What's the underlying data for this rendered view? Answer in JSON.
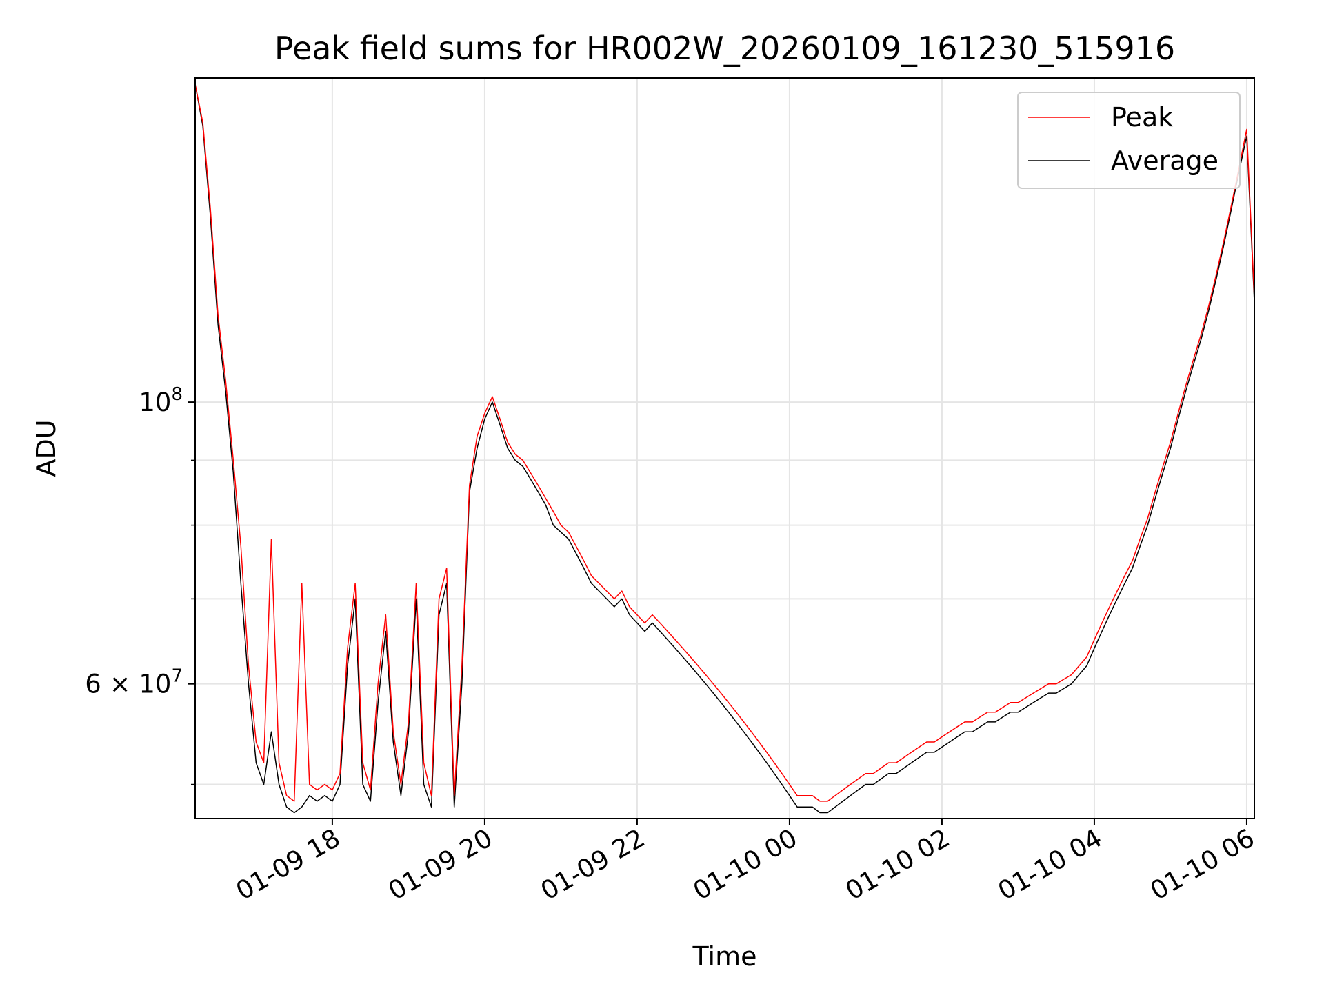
{
  "chart_data": {
    "type": "line",
    "title": "Peak field sums for HR002W_20260109_161230_515916",
    "xlabel": "Time",
    "ylabel": "ADU",
    "yscale": "log",
    "grid": true,
    "legend_position": "top-right",
    "xlim_hours": [
      16.2,
      30.1
    ],
    "ylim": [
      47000000,
      180000000
    ],
    "x_ticks": [
      {
        "hour": 18,
        "label": "01-09 18"
      },
      {
        "hour": 20,
        "label": "01-09 20"
      },
      {
        "hour": 22,
        "label": "01-09 22"
      },
      {
        "hour": 24,
        "label": "01-10 00"
      },
      {
        "hour": 26,
        "label": "01-10 02"
      },
      {
        "hour": 28,
        "label": "01-10 04"
      },
      {
        "hour": 30,
        "label": "01-10 06"
      }
    ],
    "y_major_ticks": [
      {
        "value": 100000000,
        "label_base": "10",
        "label_exp": "8"
      },
      {
        "value": 60000000,
        "label_base": "6 × 10",
        "label_exp": "7"
      }
    ],
    "y_minor_ticks": [
      50000000,
      70000000,
      80000000,
      90000000
    ],
    "series": [
      {
        "name": "Average",
        "color": "#000000",
        "points": [
          [
            16.2,
            178000000
          ],
          [
            16.3,
            165000000
          ],
          [
            16.4,
            140000000
          ],
          [
            16.5,
            115000000
          ],
          [
            16.6,
            102000000
          ],
          [
            16.7,
            88000000
          ],
          [
            16.8,
            72000000
          ],
          [
            16.9,
            60000000
          ],
          [
            17.0,
            52000000
          ],
          [
            17.1,
            50000000
          ],
          [
            17.2,
            55000000
          ],
          [
            17.3,
            50000000
          ],
          [
            17.4,
            48000000
          ],
          [
            17.5,
            47500000
          ],
          [
            17.6,
            48000000
          ],
          [
            17.7,
            49000000
          ],
          [
            17.8,
            48500000
          ],
          [
            17.9,
            49000000
          ],
          [
            18.0,
            48500000
          ],
          [
            18.1,
            50000000
          ],
          [
            18.2,
            62000000
          ],
          [
            18.3,
            70000000
          ],
          [
            18.4,
            50000000
          ],
          [
            18.5,
            48500000
          ],
          [
            18.6,
            58000000
          ],
          [
            18.7,
            66000000
          ],
          [
            18.8,
            54000000
          ],
          [
            18.9,
            49000000
          ],
          [
            19.0,
            55000000
          ],
          [
            19.1,
            70000000
          ],
          [
            19.2,
            50000000
          ],
          [
            19.3,
            48000000
          ],
          [
            19.4,
            68000000
          ],
          [
            19.5,
            72000000
          ],
          [
            19.6,
            48000000
          ],
          [
            19.7,
            60000000
          ],
          [
            19.8,
            85000000
          ],
          [
            19.9,
            92000000
          ],
          [
            20.0,
            97000000
          ],
          [
            20.1,
            100000000
          ],
          [
            20.2,
            96000000
          ],
          [
            20.3,
            92000000
          ],
          [
            20.4,
            90000000
          ],
          [
            20.5,
            89000000
          ],
          [
            20.6,
            87000000
          ],
          [
            20.7,
            85000000
          ],
          [
            20.8,
            83000000
          ],
          [
            20.9,
            80000000
          ],
          [
            21.0,
            79000000
          ],
          [
            21.1,
            78000000
          ],
          [
            21.2,
            76000000
          ],
          [
            21.3,
            74000000
          ],
          [
            21.4,
            72000000
          ],
          [
            21.5,
            71000000
          ],
          [
            21.6,
            70000000
          ],
          [
            21.7,
            69000000
          ],
          [
            21.8,
            70000000
          ],
          [
            21.9,
            68000000
          ],
          [
            22.0,
            67000000
          ],
          [
            22.1,
            66000000
          ],
          [
            22.2,
            67000000
          ],
          [
            22.3,
            66000000
          ],
          [
            22.4,
            65000000
          ],
          [
            22.5,
            64000000
          ],
          [
            22.6,
            63000000
          ],
          [
            22.7,
            62000000
          ],
          [
            22.8,
            61000000
          ],
          [
            22.9,
            60000000
          ],
          [
            23.0,
            59000000
          ],
          [
            23.1,
            58000000
          ],
          [
            23.2,
            57000000
          ],
          [
            23.3,
            56000000
          ],
          [
            23.4,
            55000000
          ],
          [
            23.5,
            54000000
          ],
          [
            23.6,
            53000000
          ],
          [
            23.7,
            52000000
          ],
          [
            23.8,
            51000000
          ],
          [
            23.9,
            50000000
          ],
          [
            24.0,
            49000000
          ],
          [
            24.1,
            48000000
          ],
          [
            24.2,
            48000000
          ],
          [
            24.3,
            48000000
          ],
          [
            24.4,
            47500000
          ],
          [
            24.5,
            47500000
          ],
          [
            24.6,
            48000000
          ],
          [
            24.7,
            48500000
          ],
          [
            24.8,
            49000000
          ],
          [
            24.9,
            49500000
          ],
          [
            25.0,
            50000000
          ],
          [
            25.1,
            50000000
          ],
          [
            25.2,
            50500000
          ],
          [
            25.3,
            51000000
          ],
          [
            25.4,
            51000000
          ],
          [
            25.5,
            51500000
          ],
          [
            25.6,
            52000000
          ],
          [
            25.7,
            52500000
          ],
          [
            25.8,
            53000000
          ],
          [
            25.9,
            53000000
          ],
          [
            26.0,
            53500000
          ],
          [
            26.1,
            54000000
          ],
          [
            26.2,
            54500000
          ],
          [
            26.3,
            55000000
          ],
          [
            26.4,
            55000000
          ],
          [
            26.5,
            55500000
          ],
          [
            26.6,
            56000000
          ],
          [
            26.7,
            56000000
          ],
          [
            26.8,
            56500000
          ],
          [
            26.9,
            57000000
          ],
          [
            27.0,
            57000000
          ],
          [
            27.1,
            57500000
          ],
          [
            27.2,
            58000000
          ],
          [
            27.3,
            58500000
          ],
          [
            27.4,
            59000000
          ],
          [
            27.5,
            59000000
          ],
          [
            27.6,
            59500000
          ],
          [
            27.7,
            60000000
          ],
          [
            27.8,
            61000000
          ],
          [
            27.9,
            62000000
          ],
          [
            28.0,
            64000000
          ],
          [
            28.1,
            66000000
          ],
          [
            28.2,
            68000000
          ],
          [
            28.3,
            70000000
          ],
          [
            28.4,
            72000000
          ],
          [
            28.5,
            74000000
          ],
          [
            28.6,
            77000000
          ],
          [
            28.7,
            80000000
          ],
          [
            28.8,
            84000000
          ],
          [
            28.9,
            88000000
          ],
          [
            29.0,
            92000000
          ],
          [
            29.1,
            97000000
          ],
          [
            29.2,
            102000000
          ],
          [
            29.3,
            107000000
          ],
          [
            29.4,
            112000000
          ],
          [
            29.5,
            118000000
          ],
          [
            29.6,
            125000000
          ],
          [
            29.7,
            133000000
          ],
          [
            29.8,
            142000000
          ],
          [
            29.9,
            152000000
          ],
          [
            30.0,
            162000000
          ],
          [
            30.1,
            120000000
          ]
        ]
      },
      {
        "name": "Peak",
        "color": "#ff0000",
        "points": [
          [
            16.2,
            178000000
          ],
          [
            16.3,
            166000000
          ],
          [
            16.4,
            142000000
          ],
          [
            16.5,
            117000000
          ],
          [
            16.6,
            104000000
          ],
          [
            16.7,
            90000000
          ],
          [
            16.8,
            77000000
          ],
          [
            16.9,
            62000000
          ],
          [
            17.0,
            54000000
          ],
          [
            17.1,
            52000000
          ],
          [
            17.2,
            78000000
          ],
          [
            17.3,
            52000000
          ],
          [
            17.4,
            49000000
          ],
          [
            17.5,
            48500000
          ],
          [
            17.6,
            72000000
          ],
          [
            17.7,
            50000000
          ],
          [
            17.8,
            49500000
          ],
          [
            17.9,
            50000000
          ],
          [
            18.0,
            49500000
          ],
          [
            18.1,
            51000000
          ],
          [
            18.2,
            64000000
          ],
          [
            18.3,
            72000000
          ],
          [
            18.4,
            52000000
          ],
          [
            18.5,
            49500000
          ],
          [
            18.6,
            60000000
          ],
          [
            18.7,
            68000000
          ],
          [
            18.8,
            55000000
          ],
          [
            18.9,
            50000000
          ],
          [
            19.0,
            56000000
          ],
          [
            19.1,
            72000000
          ],
          [
            19.2,
            52000000
          ],
          [
            19.3,
            49000000
          ],
          [
            19.4,
            70000000
          ],
          [
            19.5,
            74000000
          ],
          [
            19.6,
            49000000
          ],
          [
            19.7,
            62000000
          ],
          [
            19.8,
            86000000
          ],
          [
            19.9,
            94000000
          ],
          [
            20.0,
            98000000
          ],
          [
            20.1,
            101000000
          ],
          [
            20.2,
            97000000
          ],
          [
            20.3,
            93000000
          ],
          [
            20.4,
            91000000
          ],
          [
            20.5,
            90000000
          ],
          [
            20.6,
            88000000
          ],
          [
            20.7,
            86000000
          ],
          [
            20.8,
            84000000
          ],
          [
            20.9,
            82000000
          ],
          [
            21.0,
            80000000
          ],
          [
            21.1,
            79000000
          ],
          [
            21.2,
            77000000
          ],
          [
            21.3,
            75000000
          ],
          [
            21.4,
            73000000
          ],
          [
            21.5,
            72000000
          ],
          [
            21.6,
            71000000
          ],
          [
            21.7,
            70000000
          ],
          [
            21.8,
            71000000
          ],
          [
            21.9,
            69000000
          ],
          [
            22.0,
            68000000
          ],
          [
            22.1,
            67000000
          ],
          [
            22.2,
            68000000
          ],
          [
            22.3,
            67000000
          ],
          [
            22.4,
            66000000
          ],
          [
            22.5,
            65000000
          ],
          [
            22.6,
            64000000
          ],
          [
            22.7,
            63000000
          ],
          [
            22.8,
            62000000
          ],
          [
            22.9,
            61000000
          ],
          [
            23.0,
            60000000
          ],
          [
            23.1,
            59000000
          ],
          [
            23.2,
            58000000
          ],
          [
            23.3,
            57000000
          ],
          [
            23.4,
            56000000
          ],
          [
            23.5,
            55000000
          ],
          [
            23.6,
            54000000
          ],
          [
            23.7,
            53000000
          ],
          [
            23.8,
            52000000
          ],
          [
            23.9,
            51000000
          ],
          [
            24.0,
            50000000
          ],
          [
            24.1,
            49000000
          ],
          [
            24.2,
            49000000
          ],
          [
            24.3,
            49000000
          ],
          [
            24.4,
            48500000
          ],
          [
            24.5,
            48500000
          ],
          [
            24.6,
            49000000
          ],
          [
            24.7,
            49500000
          ],
          [
            24.8,
            50000000
          ],
          [
            24.9,
            50500000
          ],
          [
            25.0,
            51000000
          ],
          [
            25.1,
            51000000
          ],
          [
            25.2,
            51500000
          ],
          [
            25.3,
            52000000
          ],
          [
            25.4,
            52000000
          ],
          [
            25.5,
            52500000
          ],
          [
            25.6,
            53000000
          ],
          [
            25.7,
            53500000
          ],
          [
            25.8,
            54000000
          ],
          [
            25.9,
            54000000
          ],
          [
            26.0,
            54500000
          ],
          [
            26.1,
            55000000
          ],
          [
            26.2,
            55500000
          ],
          [
            26.3,
            56000000
          ],
          [
            26.4,
            56000000
          ],
          [
            26.5,
            56500000
          ],
          [
            26.6,
            57000000
          ],
          [
            26.7,
            57000000
          ],
          [
            26.8,
            57500000
          ],
          [
            26.9,
            58000000
          ],
          [
            27.0,
            58000000
          ],
          [
            27.1,
            58500000
          ],
          [
            27.2,
            59000000
          ],
          [
            27.3,
            59500000
          ],
          [
            27.4,
            60000000
          ],
          [
            27.5,
            60000000
          ],
          [
            27.6,
            60500000
          ],
          [
            27.7,
            61000000
          ],
          [
            27.8,
            62000000
          ],
          [
            27.9,
            63000000
          ],
          [
            28.0,
            65000000
          ],
          [
            28.1,
            67000000
          ],
          [
            28.2,
            69000000
          ],
          [
            28.3,
            71000000
          ],
          [
            28.4,
            73000000
          ],
          [
            28.5,
            75000000
          ],
          [
            28.6,
            78000000
          ],
          [
            28.7,
            81000000
          ],
          [
            28.8,
            85000000
          ],
          [
            28.9,
            89000000
          ],
          [
            29.0,
            93000000
          ],
          [
            29.1,
            98000000
          ],
          [
            29.2,
            103000000
          ],
          [
            29.3,
            108000000
          ],
          [
            29.4,
            113000000
          ],
          [
            29.5,
            119000000
          ],
          [
            29.6,
            126000000
          ],
          [
            29.7,
            134000000
          ],
          [
            29.8,
            143000000
          ],
          [
            29.9,
            153000000
          ],
          [
            30.0,
            164000000
          ],
          [
            30.1,
            121000000
          ]
        ]
      }
    ]
  }
}
